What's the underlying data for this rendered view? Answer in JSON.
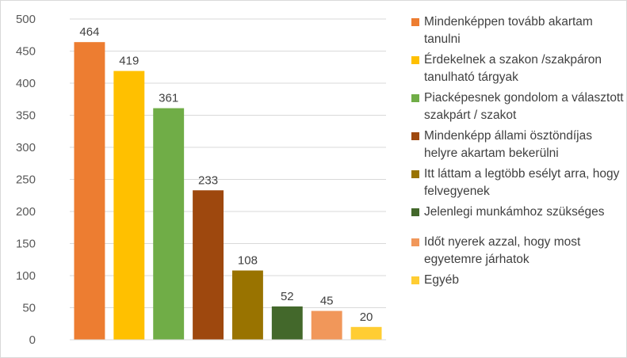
{
  "chart_data": {
    "type": "bar",
    "title": "",
    "xlabel": "",
    "ylabel": "",
    "ylim": [
      0,
      500
    ],
    "yticks": [
      0,
      50,
      100,
      150,
      200,
      250,
      300,
      350,
      400,
      450,
      500
    ],
    "grid": true,
    "legend_position": "right",
    "categories": [
      "Mindenképpen tovább akartam tanulni",
      "Érdekelnek a szakon /szakpáron tanulható tárgyak",
      "Piacképesnek gondolom a választott szakpárt / szakot",
      "Mindenképp állami ösztöndíjas helyre akartam bekerülni",
      "Itt láttam a legtöbb esélyt arra, hogy felvegyenek",
      "Jelenlegi munkámhoz szükséges",
      "Időt nyerek azzal, hogy most egyetemre járhatok",
      "Egyéb"
    ],
    "values": [
      464,
      419,
      361,
      233,
      108,
      52,
      45,
      20
    ],
    "colors": [
      "#ED7D31",
      "#FFC000",
      "#70AD47",
      "#9E480E",
      "#997300",
      "#43682B",
      "#F1975A",
      "#FFCD33"
    ]
  }
}
